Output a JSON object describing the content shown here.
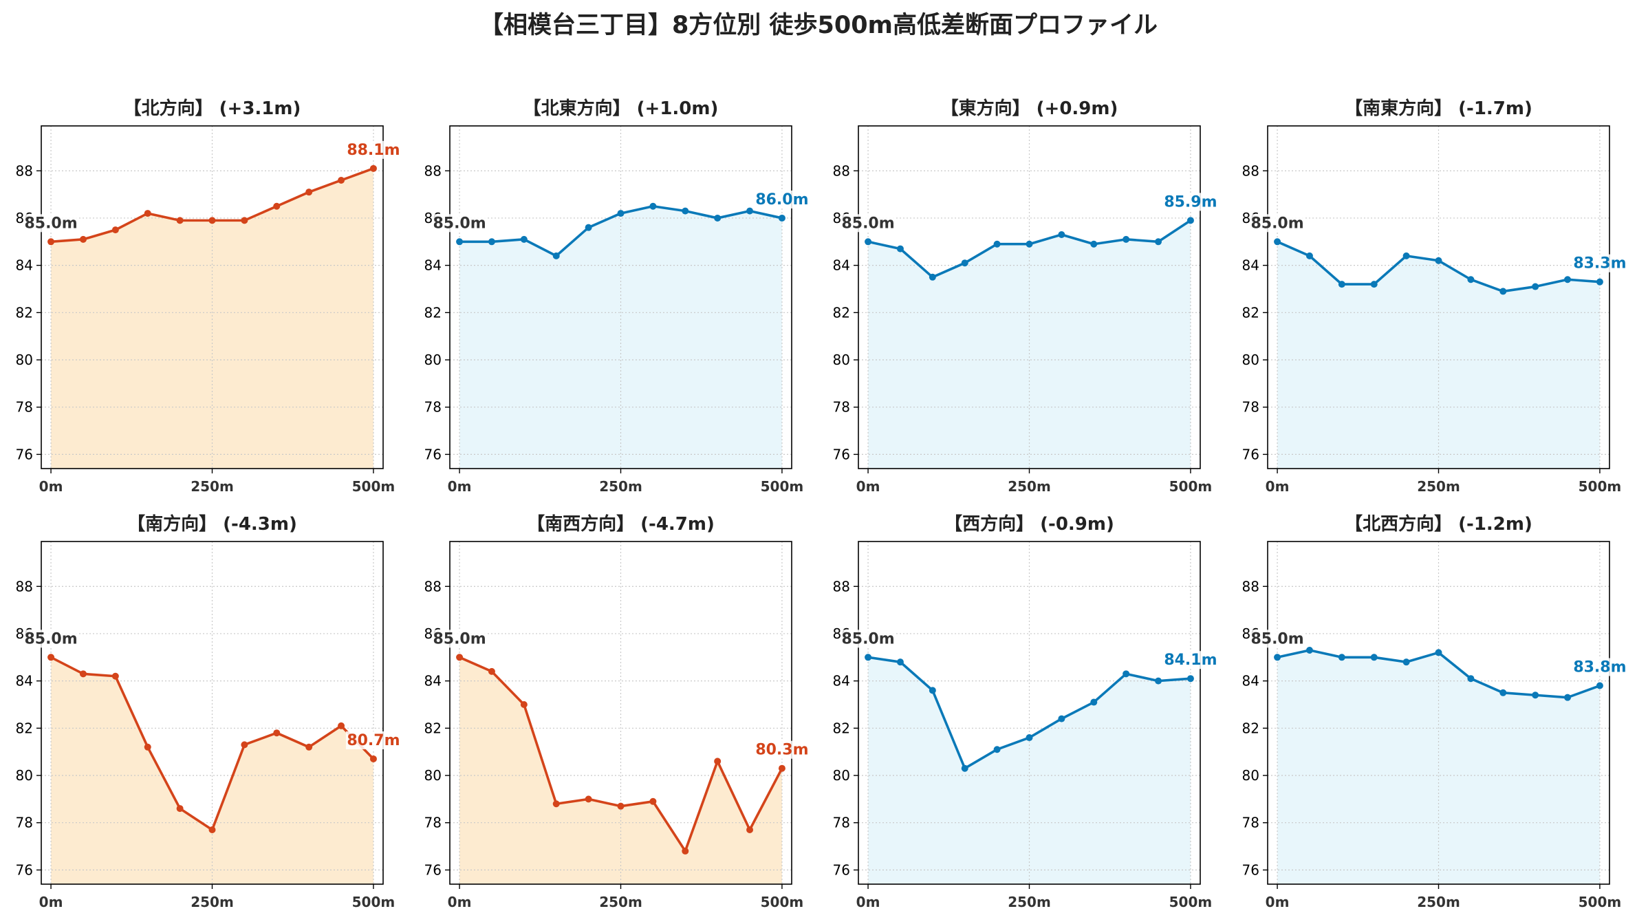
{
  "suptitle": "【相模台三丁目】8方位別 徒歩500m高低差断面プロファイル",
  "colors": {
    "up": "#d4441a",
    "up_fill": "#fdebd0",
    "down": "#0a79b8",
    "down_fill": "#e8f6fb",
    "start_label": "#333333"
  },
  "chart_data": [
    {
      "type": "area",
      "title": "【北方向】 (+3.1m)",
      "trend": "up",
      "x": [
        0,
        50,
        100,
        150,
        200,
        250,
        300,
        350,
        400,
        450,
        500
      ],
      "y": [
        85.0,
        85.1,
        85.5,
        86.2,
        85.9,
        85.9,
        85.9,
        86.5,
        87.1,
        87.6,
        88.1
      ],
      "start_label": "85.0m",
      "end_label": "88.1m",
      "xticks": [
        "0m",
        "250m",
        "500m"
      ],
      "yticks": [
        76,
        78,
        80,
        82,
        84,
        86,
        88
      ],
      "ylim": [
        75.4,
        89.9
      ],
      "xlim": [
        -15,
        515
      ],
      "grid": true
    },
    {
      "type": "area",
      "title": "【北東方向】 (+1.0m)",
      "trend": "down",
      "x": [
        0,
        50,
        100,
        150,
        200,
        250,
        300,
        350,
        400,
        450,
        500
      ],
      "y": [
        85.0,
        85.0,
        85.1,
        84.4,
        85.6,
        86.2,
        86.5,
        86.3,
        86.0,
        86.3,
        86.0
      ],
      "start_label": "85.0m",
      "end_label": "86.0m",
      "xticks": [
        "0m",
        "250m",
        "500m"
      ],
      "yticks": [
        76,
        78,
        80,
        82,
        84,
        86,
        88
      ],
      "ylim": [
        75.4,
        89.9
      ],
      "xlim": [
        -15,
        515
      ],
      "grid": true
    },
    {
      "type": "area",
      "title": "【東方向】 (+0.9m)",
      "trend": "down",
      "x": [
        0,
        50,
        100,
        150,
        200,
        250,
        300,
        350,
        400,
        450,
        500
      ],
      "y": [
        85.0,
        84.7,
        83.5,
        84.1,
        84.9,
        84.9,
        85.3,
        84.9,
        85.1,
        85.0,
        85.9
      ],
      "start_label": "85.0m",
      "end_label": "85.9m",
      "xticks": [
        "0m",
        "250m",
        "500m"
      ],
      "yticks": [
        76,
        78,
        80,
        82,
        84,
        86,
        88
      ],
      "ylim": [
        75.4,
        89.9
      ],
      "xlim": [
        -15,
        515
      ],
      "grid": true
    },
    {
      "type": "area",
      "title": "【南東方向】 (-1.7m)",
      "trend": "down",
      "x": [
        0,
        50,
        100,
        150,
        200,
        250,
        300,
        350,
        400,
        450,
        500
      ],
      "y": [
        85.0,
        84.4,
        83.2,
        83.2,
        84.4,
        84.2,
        83.4,
        82.9,
        83.1,
        83.4,
        83.3
      ],
      "start_label": "85.0m",
      "end_label": "83.3m",
      "xticks": [
        "0m",
        "250m",
        "500m"
      ],
      "yticks": [
        76,
        78,
        80,
        82,
        84,
        86,
        88
      ],
      "ylim": [
        75.4,
        89.9
      ],
      "xlim": [
        -15,
        515
      ],
      "grid": true
    },
    {
      "type": "area",
      "title": "【南方向】 (-4.3m)",
      "trend": "up",
      "x": [
        0,
        50,
        100,
        150,
        200,
        250,
        300,
        350,
        400,
        450,
        500
      ],
      "y": [
        85.0,
        84.3,
        84.2,
        81.2,
        78.6,
        77.7,
        81.3,
        81.8,
        81.2,
        82.1,
        80.7
      ],
      "start_label": "85.0m",
      "end_label": "80.7m",
      "xticks": [
        "0m",
        "250m",
        "500m"
      ],
      "yticks": [
        76,
        78,
        80,
        82,
        84,
        86,
        88
      ],
      "ylim": [
        75.4,
        89.9
      ],
      "xlim": [
        -15,
        515
      ],
      "grid": true
    },
    {
      "type": "area",
      "title": "【南西方向】 (-4.7m)",
      "trend": "up",
      "x": [
        0,
        50,
        100,
        150,
        200,
        250,
        300,
        350,
        400,
        450,
        500
      ],
      "y": [
        85.0,
        84.4,
        83.0,
        78.8,
        79.0,
        78.7,
        78.9,
        76.8,
        80.6,
        77.7,
        80.3
      ],
      "start_label": "85.0m",
      "end_label": "80.3m",
      "xticks": [
        "0m",
        "250m",
        "500m"
      ],
      "yticks": [
        76,
        78,
        80,
        82,
        84,
        86,
        88
      ],
      "ylim": [
        75.4,
        89.9
      ],
      "xlim": [
        -15,
        515
      ],
      "grid": true
    },
    {
      "type": "area",
      "title": "【西方向】 (-0.9m)",
      "trend": "down",
      "x": [
        0,
        50,
        100,
        150,
        200,
        250,
        300,
        350,
        400,
        450,
        500
      ],
      "y": [
        85.0,
        84.8,
        83.6,
        80.3,
        81.1,
        81.6,
        82.4,
        83.1,
        84.3,
        84.0,
        84.1
      ],
      "start_label": "85.0m",
      "end_label": "84.1m",
      "xticks": [
        "0m",
        "250m",
        "500m"
      ],
      "yticks": [
        76,
        78,
        80,
        82,
        84,
        86,
        88
      ],
      "ylim": [
        75.4,
        89.9
      ],
      "xlim": [
        -15,
        515
      ],
      "grid": true
    },
    {
      "type": "area",
      "title": "【北西方向】 (-1.2m)",
      "trend": "down",
      "x": [
        0,
        50,
        100,
        150,
        200,
        250,
        300,
        350,
        400,
        450,
        500
      ],
      "y": [
        85.0,
        85.3,
        85.0,
        85.0,
        84.8,
        85.2,
        84.1,
        83.5,
        83.4,
        83.3,
        83.8
      ],
      "start_label": "85.0m",
      "end_label": "83.8m",
      "xticks": [
        "0m",
        "250m",
        "500m"
      ],
      "yticks": [
        76,
        78,
        80,
        82,
        84,
        86,
        88
      ],
      "ylim": [
        75.4,
        89.9
      ],
      "xlim": [
        -15,
        515
      ],
      "grid": true
    }
  ]
}
